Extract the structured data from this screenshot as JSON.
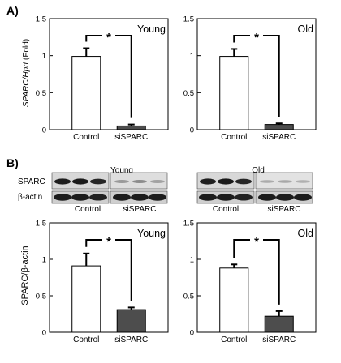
{
  "panelA": {
    "letter": "A)",
    "ylabel_italic": "SPARC/Hprt",
    "ylabel_rest": " (Fold)",
    "charts": [
      {
        "label": "Young",
        "sig": "*"
      },
      {
        "label": "Old",
        "sig": "*"
      }
    ]
  },
  "panelB": {
    "letter": "B)",
    "blot": {
      "rows": [
        "SPARC",
        "β-actin"
      ],
      "groups": [
        {
          "label": "Young",
          "conditions": [
            "Control",
            "siSPARC"
          ]
        },
        {
          "label": "Old",
          "conditions": [
            "Control",
            "siSPARC"
          ]
        }
      ]
    },
    "ylabel": "SPARC/β-actin",
    "charts": [
      {
        "label": "Young",
        "sig": "*"
      },
      {
        "label": "Old",
        "sig": "*"
      }
    ]
  },
  "chart_data": [
    {
      "type": "bar",
      "panel": "A",
      "title": "Young",
      "categories": [
        "Control",
        "siSPARC"
      ],
      "values": [
        0.99,
        0.05
      ],
      "errors": [
        0.11,
        0.02
      ],
      "ylim": [
        0,
        1.5
      ],
      "yticks": [
        "0",
        "0.5",
        "1",
        "1.5"
      ],
      "ylabel": "SPARC/Hprt (Fold)",
      "xlabel": "",
      "bar_colors": [
        "#ffffff",
        "#4d4d4d"
      ],
      "significance": "*"
    },
    {
      "type": "bar",
      "panel": "A",
      "title": "Old",
      "categories": [
        "Control",
        "siSPARC"
      ],
      "values": [
        0.99,
        0.07
      ],
      "errors": [
        0.1,
        0.015
      ],
      "ylim": [
        0,
        1.5
      ],
      "yticks": [
        "0",
        "0.5",
        "1",
        "1.5"
      ],
      "ylabel": "",
      "xlabel": "",
      "bar_colors": [
        "#ffffff",
        "#4d4d4d"
      ],
      "significance": "*"
    },
    {
      "type": "bar",
      "panel": "B",
      "title": "Young",
      "categories": [
        "Control",
        "siSPARC"
      ],
      "values": [
        0.91,
        0.31
      ],
      "errors": [
        0.17,
        0.03
      ],
      "ylim": [
        0,
        1.5
      ],
      "yticks": [
        "0",
        "0.5",
        "1",
        "1.5"
      ],
      "ylabel": "SPARC/β-actin",
      "xlabel": "",
      "bar_colors": [
        "#ffffff",
        "#4d4d4d"
      ],
      "significance": "*"
    },
    {
      "type": "bar",
      "panel": "B",
      "title": "Old",
      "categories": [
        "Control",
        "siSPARC"
      ],
      "values": [
        0.88,
        0.22
      ],
      "errors": [
        0.05,
        0.07
      ],
      "ylim": [
        0,
        1.5
      ],
      "yticks": [
        "0",
        "0.5",
        "1",
        "1.5"
      ],
      "ylabel": "",
      "xlabel": "",
      "bar_colors": [
        "#ffffff",
        "#4d4d4d"
      ],
      "significance": "*"
    }
  ]
}
